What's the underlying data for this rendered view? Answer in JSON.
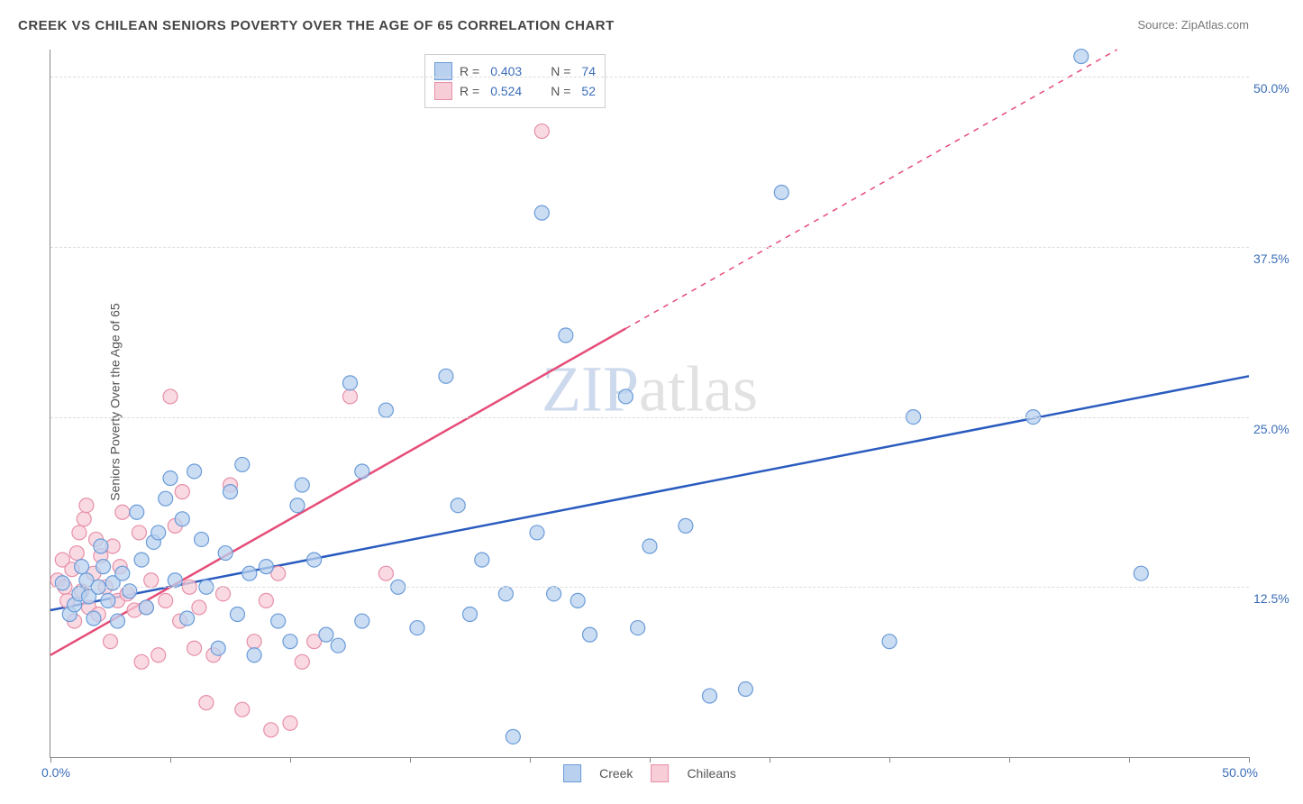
{
  "title": "CREEK VS CHILEAN SENIORS POVERTY OVER THE AGE OF 65 CORRELATION CHART",
  "source_label": "Source: ",
  "source_name": "ZipAtlas.com",
  "y_axis_label": "Seniors Poverty Over the Age of 65",
  "watermark_zip": "ZIP",
  "watermark_atlas": "atlas",
  "chart": {
    "type": "scatter",
    "xlim": [
      0,
      50
    ],
    "ylim": [
      0,
      52
    ],
    "x_origin_label": "0.0%",
    "x_max_label": "50.0%",
    "y_ticks": [
      12.5,
      25.0,
      37.5,
      50.0
    ],
    "y_tick_labels": [
      "12.5%",
      "25.0%",
      "37.5%",
      "50.0%"
    ],
    "x_tick_positions": [
      0,
      5,
      10,
      15,
      20,
      25,
      30,
      35,
      40,
      45,
      50
    ],
    "background_color": "#ffffff",
    "grid_color": "#dddddd",
    "series": [
      {
        "name": "Creek",
        "legend_label": "Creek",
        "marker_fill": "#b9d1ef",
        "marker_stroke": "#6a9bd8",
        "marker_radius": 8,
        "trend_color": "#2a5bbf",
        "trend_width": 2.5,
        "trend_dash": "none",
        "trend_start": [
          0,
          10.8
        ],
        "trend_end": [
          50,
          28.0
        ],
        "r_value": "0.403",
        "n_value": "74",
        "data": [
          [
            0.5,
            12.8
          ],
          [
            0.8,
            10.5
          ],
          [
            1.0,
            11.2
          ],
          [
            1.2,
            12.0
          ],
          [
            1.5,
            13.0
          ],
          [
            1.6,
            11.8
          ],
          [
            1.8,
            10.2
          ],
          [
            2.0,
            12.5
          ],
          [
            2.2,
            14.0
          ],
          [
            2.4,
            11.5
          ],
          [
            2.6,
            12.8
          ],
          [
            2.8,
            10.0
          ],
          [
            3.0,
            13.5
          ],
          [
            3.3,
            12.2
          ],
          [
            3.6,
            18.0
          ],
          [
            3.8,
            14.5
          ],
          [
            4.0,
            11.0
          ],
          [
            4.3,
            15.8
          ],
          [
            4.5,
            16.5
          ],
          [
            5.0,
            20.5
          ],
          [
            5.2,
            13.0
          ],
          [
            5.5,
            17.5
          ],
          [
            5.7,
            10.2
          ],
          [
            6.0,
            21.0
          ],
          [
            6.3,
            16.0
          ],
          [
            6.5,
            12.5
          ],
          [
            7.0,
            8.0
          ],
          [
            7.3,
            15.0
          ],
          [
            7.5,
            19.5
          ],
          [
            7.8,
            10.5
          ],
          [
            8.0,
            21.5
          ],
          [
            8.3,
            13.5
          ],
          [
            8.5,
            7.5
          ],
          [
            9.0,
            14.0
          ],
          [
            9.5,
            10.0
          ],
          [
            10.0,
            8.5
          ],
          [
            10.3,
            18.5
          ],
          [
            10.5,
            20.0
          ],
          [
            11.0,
            14.5
          ],
          [
            11.5,
            9.0
          ],
          [
            12.0,
            8.2
          ],
          [
            12.5,
            27.5
          ],
          [
            13.0,
            10.0
          ],
          [
            14.0,
            25.5
          ],
          [
            14.5,
            12.5
          ],
          [
            15.3,
            9.5
          ],
          [
            16.5,
            28.0
          ],
          [
            17.0,
            18.5
          ],
          [
            17.5,
            10.5
          ],
          [
            18.0,
            14.5
          ],
          [
            19.0,
            12.0
          ],
          [
            19.3,
            1.5
          ],
          [
            20.3,
            16.5
          ],
          [
            20.5,
            40.0
          ],
          [
            21.0,
            12.0
          ],
          [
            21.5,
            31.0
          ],
          [
            22.0,
            11.5
          ],
          [
            22.5,
            9.0
          ],
          [
            24.0,
            26.5
          ],
          [
            24.5,
            9.5
          ],
          [
            25.0,
            15.5
          ],
          [
            26.5,
            17.0
          ],
          [
            27.5,
            4.5
          ],
          [
            29.0,
            5.0
          ],
          [
            30.5,
            41.5
          ],
          [
            35.0,
            8.5
          ],
          [
            36.0,
            25.0
          ],
          [
            41.0,
            25.0
          ],
          [
            43.0,
            51.5
          ],
          [
            45.5,
            13.5
          ],
          [
            13.0,
            21.0
          ],
          [
            4.8,
            19.0
          ],
          [
            2.1,
            15.5
          ],
          [
            1.3,
            14.0
          ]
        ]
      },
      {
        "name": "Chileans",
        "legend_label": "Chileans",
        "marker_fill": "#f7cdd8",
        "marker_stroke": "#e78fa8",
        "marker_radius": 8,
        "trend_color": "#e54d78",
        "trend_width": 2.5,
        "trend_dash_solid_end_x": 24,
        "trend_start": [
          0,
          7.5
        ],
        "trend_end_solid": [
          24,
          31.5
        ],
        "trend_end_dashed": [
          50,
          57.5
        ],
        "r_value": "0.524",
        "n_value": "52",
        "data": [
          [
            0.3,
            13.0
          ],
          [
            0.5,
            14.5
          ],
          [
            0.7,
            11.5
          ],
          [
            0.9,
            13.8
          ],
          [
            1.0,
            10.0
          ],
          [
            1.1,
            15.0
          ],
          [
            1.3,
            12.2
          ],
          [
            1.4,
            17.5
          ],
          [
            1.5,
            18.5
          ],
          [
            1.6,
            11.0
          ],
          [
            1.8,
            13.5
          ],
          [
            1.9,
            16.0
          ],
          [
            2.0,
            10.5
          ],
          [
            2.1,
            14.8
          ],
          [
            2.3,
            12.5
          ],
          [
            2.5,
            8.5
          ],
          [
            2.6,
            15.5
          ],
          [
            2.8,
            11.5
          ],
          [
            2.9,
            14.0
          ],
          [
            3.0,
            18.0
          ],
          [
            3.2,
            12.0
          ],
          [
            3.5,
            10.8
          ],
          [
            3.7,
            16.5
          ],
          [
            3.8,
            7.0
          ],
          [
            4.0,
            11.0
          ],
          [
            4.2,
            13.0
          ],
          [
            4.5,
            7.5
          ],
          [
            4.8,
            11.5
          ],
          [
            5.0,
            26.5
          ],
          [
            5.2,
            17.0
          ],
          [
            5.4,
            10.0
          ],
          [
            5.5,
            19.5
          ],
          [
            5.8,
            12.5
          ],
          [
            6.0,
            8.0
          ],
          [
            6.2,
            11.0
          ],
          [
            6.5,
            4.0
          ],
          [
            6.8,
            7.5
          ],
          [
            7.2,
            12.0
          ],
          [
            7.5,
            20.0
          ],
          [
            8.0,
            3.5
          ],
          [
            8.5,
            8.5
          ],
          [
            9.0,
            11.5
          ],
          [
            9.2,
            2.0
          ],
          [
            9.5,
            13.5
          ],
          [
            10.0,
            2.5
          ],
          [
            10.5,
            7.0
          ],
          [
            11.0,
            8.5
          ],
          [
            12.5,
            26.5
          ],
          [
            14.0,
            13.5
          ],
          [
            20.5,
            46.0
          ],
          [
            1.2,
            16.5
          ],
          [
            0.6,
            12.5
          ]
        ]
      }
    ]
  },
  "top_legend": {
    "r_label": "R  = ",
    "n_label": "N  = "
  },
  "bottom_legend": {
    "items": [
      "Creek",
      "Chileans"
    ]
  }
}
